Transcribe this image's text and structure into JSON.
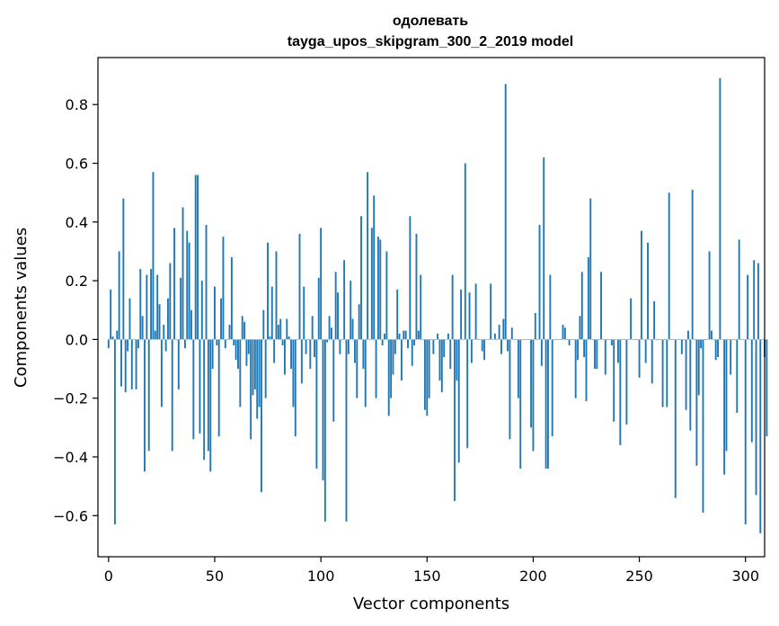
{
  "chart_data": {
    "type": "bar",
    "title": "одолевать",
    "subtitle": "tayga_upos_skipgram_300_2_2019 model",
    "xlabel": "Vector components",
    "ylabel": "Components values",
    "xlim": [
      -5,
      309
    ],
    "ylim": [
      -0.74,
      0.96
    ],
    "xticks": [
      0,
      50,
      100,
      150,
      200,
      250,
      300
    ],
    "yticks": [
      -0.6,
      -0.4,
      -0.2,
      0.0,
      0.2,
      0.4,
      0.6,
      0.8
    ],
    "xtick_labels": [
      "0",
      "50",
      "100",
      "150",
      "200",
      "250",
      "300"
    ],
    "ytick_labels": [
      "−0.6",
      "−0.4",
      "−0.2",
      "0.0",
      "0.2",
      "0.4",
      "0.6",
      "0.8"
    ],
    "grid": false,
    "bar_color": "#1f77b4",
    "values": [
      -0.03,
      0.17,
      0.01,
      -0.63,
      0.03,
      0.3,
      -0.16,
      0.48,
      -0.18,
      -0.04,
      0.14,
      -0.17,
      0.0,
      -0.17,
      -0.03,
      0.24,
      0.08,
      -0.45,
      0.22,
      -0.38,
      0.24,
      0.57,
      0.03,
      0.22,
      0.12,
      -0.23,
      0.05,
      -0.04,
      0.14,
      0.26,
      -0.38,
      0.38,
      0.0,
      -0.17,
      0.21,
      0.45,
      -0.03,
      0.37,
      0.33,
      0.1,
      -0.34,
      0.56,
      0.56,
      -0.32,
      0.2,
      -0.41,
      0.39,
      -0.38,
      -0.45,
      -0.1,
      0.18,
      -0.02,
      -0.33,
      0.14,
      0.35,
      -0.03,
      0.0,
      0.05,
      0.28,
      -0.02,
      -0.07,
      -0.1,
      -0.23,
      0.08,
      0.06,
      -0.09,
      -0.05,
      -0.34,
      -0.19,
      -0.17,
      -0.27,
      -0.23,
      -0.52,
      0.1,
      -0.2,
      0.33,
      0.01,
      0.18,
      -0.08,
      0.3,
      0.05,
      0.07,
      -0.02,
      -0.12,
      0.07,
      0.01,
      -0.1,
      -0.23,
      -0.33,
      0.0,
      0.36,
      -0.15,
      0.18,
      -0.05,
      0.0,
      -0.1,
      0.08,
      -0.06,
      -0.44,
      0.21,
      0.38,
      -0.48,
      -0.62,
      -0.01,
      0.08,
      0.04,
      -0.28,
      0.23,
      0.16,
      -0.05,
      0.0,
      0.27,
      -0.62,
      -0.05,
      0.2,
      0.07,
      -0.08,
      -0.2,
      0.12,
      0.42,
      -0.1,
      -0.23,
      0.57,
      0.0,
      0.38,
      0.49,
      -0.2,
      0.35,
      0.34,
      -0.02,
      0.02,
      0.3,
      -0.26,
      -0.2,
      -0.12,
      -0.05,
      0.17,
      0.02,
      -0.14,
      0.03,
      0.03,
      -0.03,
      0.42,
      -0.09,
      -0.02,
      0.36,
      0.03,
      0.22,
      0.0,
      -0.24,
      -0.26,
      -0.2,
      0.0,
      -0.05,
      0.0,
      0.02,
      -0.14,
      -0.18,
      -0.06,
      0.0,
      0.02,
      -0.1,
      0.22,
      -0.55,
      -0.14,
      -0.42,
      0.17,
      0.0,
      0.6,
      -0.37,
      0.16,
      -0.08,
      0.0,
      0.19,
      0.0,
      0.0,
      -0.04,
      -0.07,
      0.0,
      0.0,
      0.19,
      0.0,
      0.02,
      0.0,
      0.05,
      -0.05,
      0.07,
      0.87,
      -0.04,
      -0.34,
      0.04,
      0.0,
      0.0,
      -0.2,
      -0.44,
      0.0,
      0.0,
      0.0,
      0.0,
      -0.3,
      -0.38,
      0.09,
      0.0,
      0.39,
      -0.09,
      0.62,
      -0.44,
      -0.44,
      0.22,
      -0.33,
      0.0,
      0.0,
      0.0,
      0.0,
      0.05,
      0.04,
      0.0,
      -0.02,
      0.0,
      0.0,
      -0.2,
      -0.07,
      0.08,
      0.23,
      -0.06,
      -0.21,
      0.28,
      0.48,
      0.0,
      -0.1,
      -0.1,
      0.0,
      0.23,
      0.0,
      -0.12,
      0.0,
      0.0,
      -0.02,
      -0.28,
      0.0,
      -0.08,
      -0.36,
      0.0,
      0.0,
      -0.29,
      0.0,
      0.14,
      0.0,
      0.0,
      0.0,
      -0.13,
      0.37,
      0.0,
      -0.08,
      0.33,
      0.0,
      -0.15,
      0.13,
      0.0,
      0.0,
      0.0,
      -0.23,
      0.0,
      -0.23,
      0.5,
      0.0,
      0.0,
      -0.54,
      0.0,
      0.0,
      -0.05,
      0.0,
      -0.24,
      0.03,
      -0.31,
      0.51,
      0.0,
      -0.43,
      -0.19,
      -0.03,
      -0.59,
      0.0,
      0.0,
      0.3,
      0.03,
      0.0,
      -0.07,
      -0.06,
      0.89,
      0.0,
      -0.46,
      -0.38,
      0.0,
      -0.12,
      0.0,
      0.0,
      -0.25,
      0.34,
      0.0,
      0.0,
      -0.63,
      0.22,
      0.0,
      -0.35,
      0.27,
      -0.53,
      0.26,
      -0.66,
      0.0,
      -0.06,
      -0.33
    ]
  }
}
